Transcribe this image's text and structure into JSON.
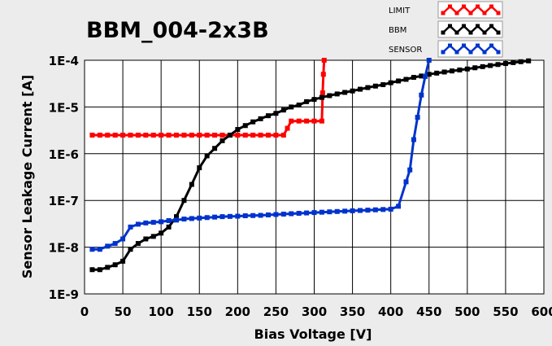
{
  "chart_data": {
    "type": "line",
    "title": "BBM_004-2x3B",
    "xlabel": "Bias Voltage [V]",
    "ylabel": "Sensor Leakage Current [A]",
    "xlim": [
      0,
      600
    ],
    "ylim": [
      1e-09,
      0.0001
    ],
    "y_scale": "log",
    "grid": true,
    "legend_position": "top-right",
    "x_ticks": [
      "0",
      "50",
      "100",
      "150",
      "200",
      "250",
      "300",
      "350",
      "400",
      "450",
      "500",
      "550",
      "600"
    ],
    "y_ticks": [
      "1E-9",
      "1E-8",
      "1E-7",
      "1E-6",
      "1E-5",
      "1E-4"
    ],
    "series": [
      {
        "name": "LIMIT",
        "color": "#ff0000",
        "x": [
          10,
          20,
          30,
          40,
          50,
          60,
          70,
          80,
          90,
          100,
          110,
          120,
          130,
          140,
          150,
          160,
          170,
          180,
          190,
          200,
          210,
          220,
          230,
          240,
          250,
          260,
          265,
          270,
          280,
          290,
          300,
          310,
          311,
          312,
          313
        ],
        "y": [
          2.5e-06,
          2.5e-06,
          2.5e-06,
          2.5e-06,
          2.5e-06,
          2.5e-06,
          2.5e-06,
          2.5e-06,
          2.5e-06,
          2.5e-06,
          2.5e-06,
          2.5e-06,
          2.5e-06,
          2.5e-06,
          2.5e-06,
          2.5e-06,
          2.5e-06,
          2.5e-06,
          2.5e-06,
          2.5e-06,
          2.5e-06,
          2.5e-06,
          2.5e-06,
          2.5e-06,
          2.5e-06,
          2.5e-06,
          3.5e-06,
          5e-06,
          5e-06,
          5e-06,
          5e-06,
          5e-06,
          2e-05,
          5e-05,
          0.0001
        ]
      },
      {
        "name": "BBM",
        "color": "#000000",
        "x": [
          10,
          20,
          30,
          40,
          50,
          60,
          70,
          80,
          90,
          100,
          110,
          120,
          130,
          140,
          150,
          160,
          170,
          180,
          190,
          200,
          210,
          220,
          230,
          240,
          250,
          260,
          270,
          280,
          290,
          300,
          310,
          320,
          330,
          340,
          350,
          360,
          370,
          380,
          390,
          400,
          410,
          420,
          430,
          440,
          450,
          460,
          470,
          480,
          490,
          500,
          510,
          520,
          530,
          540,
          550,
          560,
          570,
          580
        ],
        "y": [
          3.3e-09,
          3.3e-09,
          3.7e-09,
          4.2e-09,
          5e-09,
          9e-09,
          1.2e-08,
          1.5e-08,
          1.7e-08,
          2e-08,
          2.7e-08,
          4.5e-08,
          1e-07,
          2.2e-07,
          5e-07,
          9e-07,
          1.3e-06,
          1.9e-06,
          2.5e-06,
          3.3e-06,
          4e-06,
          4.8e-06,
          5.6e-06,
          6.5e-06,
          7.3e-06,
          8.6e-06,
          1e-05,
          1.1e-05,
          1.3e-05,
          1.45e-05,
          1.6e-05,
          1.75e-05,
          1.9e-05,
          2.05e-05,
          2.2e-05,
          2.4e-05,
          2.6e-05,
          2.8e-05,
          3e-05,
          3.3e-05,
          3.6e-05,
          3.9e-05,
          4.3e-05,
          4.6e-05,
          5e-05,
          5.3e-05,
          5.6e-05,
          5.9e-05,
          6.2e-05,
          6.5e-05,
          6.9e-05,
          7.3e-05,
          7.7e-05,
          8.1e-05,
          8.5e-05,
          8.9e-05,
          9.3e-05,
          9.7e-05
        ]
      },
      {
        "name": "SENSOR",
        "color": "#0033cc",
        "x": [
          10,
          20,
          30,
          40,
          50,
          60,
          70,
          80,
          90,
          100,
          110,
          120,
          130,
          140,
          150,
          160,
          170,
          180,
          190,
          200,
          210,
          220,
          230,
          240,
          250,
          260,
          270,
          280,
          290,
          300,
          310,
          320,
          330,
          340,
          350,
          360,
          370,
          380,
          390,
          400,
          410,
          420,
          425,
          430,
          435,
          440,
          445,
          450
        ],
        "y": [
          9e-09,
          9e-09,
          1.05e-08,
          1.2e-08,
          1.5e-08,
          2.7e-08,
          3.1e-08,
          3.3e-08,
          3.4e-08,
          3.5e-08,
          3.7e-08,
          3.8e-08,
          4e-08,
          4.1e-08,
          4.2e-08,
          4.3e-08,
          4.4e-08,
          4.5e-08,
          4.55e-08,
          4.6e-08,
          4.7e-08,
          4.75e-08,
          4.8e-08,
          4.9e-08,
          5e-08,
          5.1e-08,
          5.2e-08,
          5.3e-08,
          5.4e-08,
          5.5e-08,
          5.6e-08,
          5.7e-08,
          5.8e-08,
          5.9e-08,
          6e-08,
          6.1e-08,
          6.2e-08,
          6.3e-08,
          6.4e-08,
          6.5e-08,
          7.5e-08,
          2.5e-07,
          4.5e-07,
          2e-06,
          6e-06,
          1.8e-05,
          4.5e-05,
          0.0001
        ]
      }
    ]
  }
}
